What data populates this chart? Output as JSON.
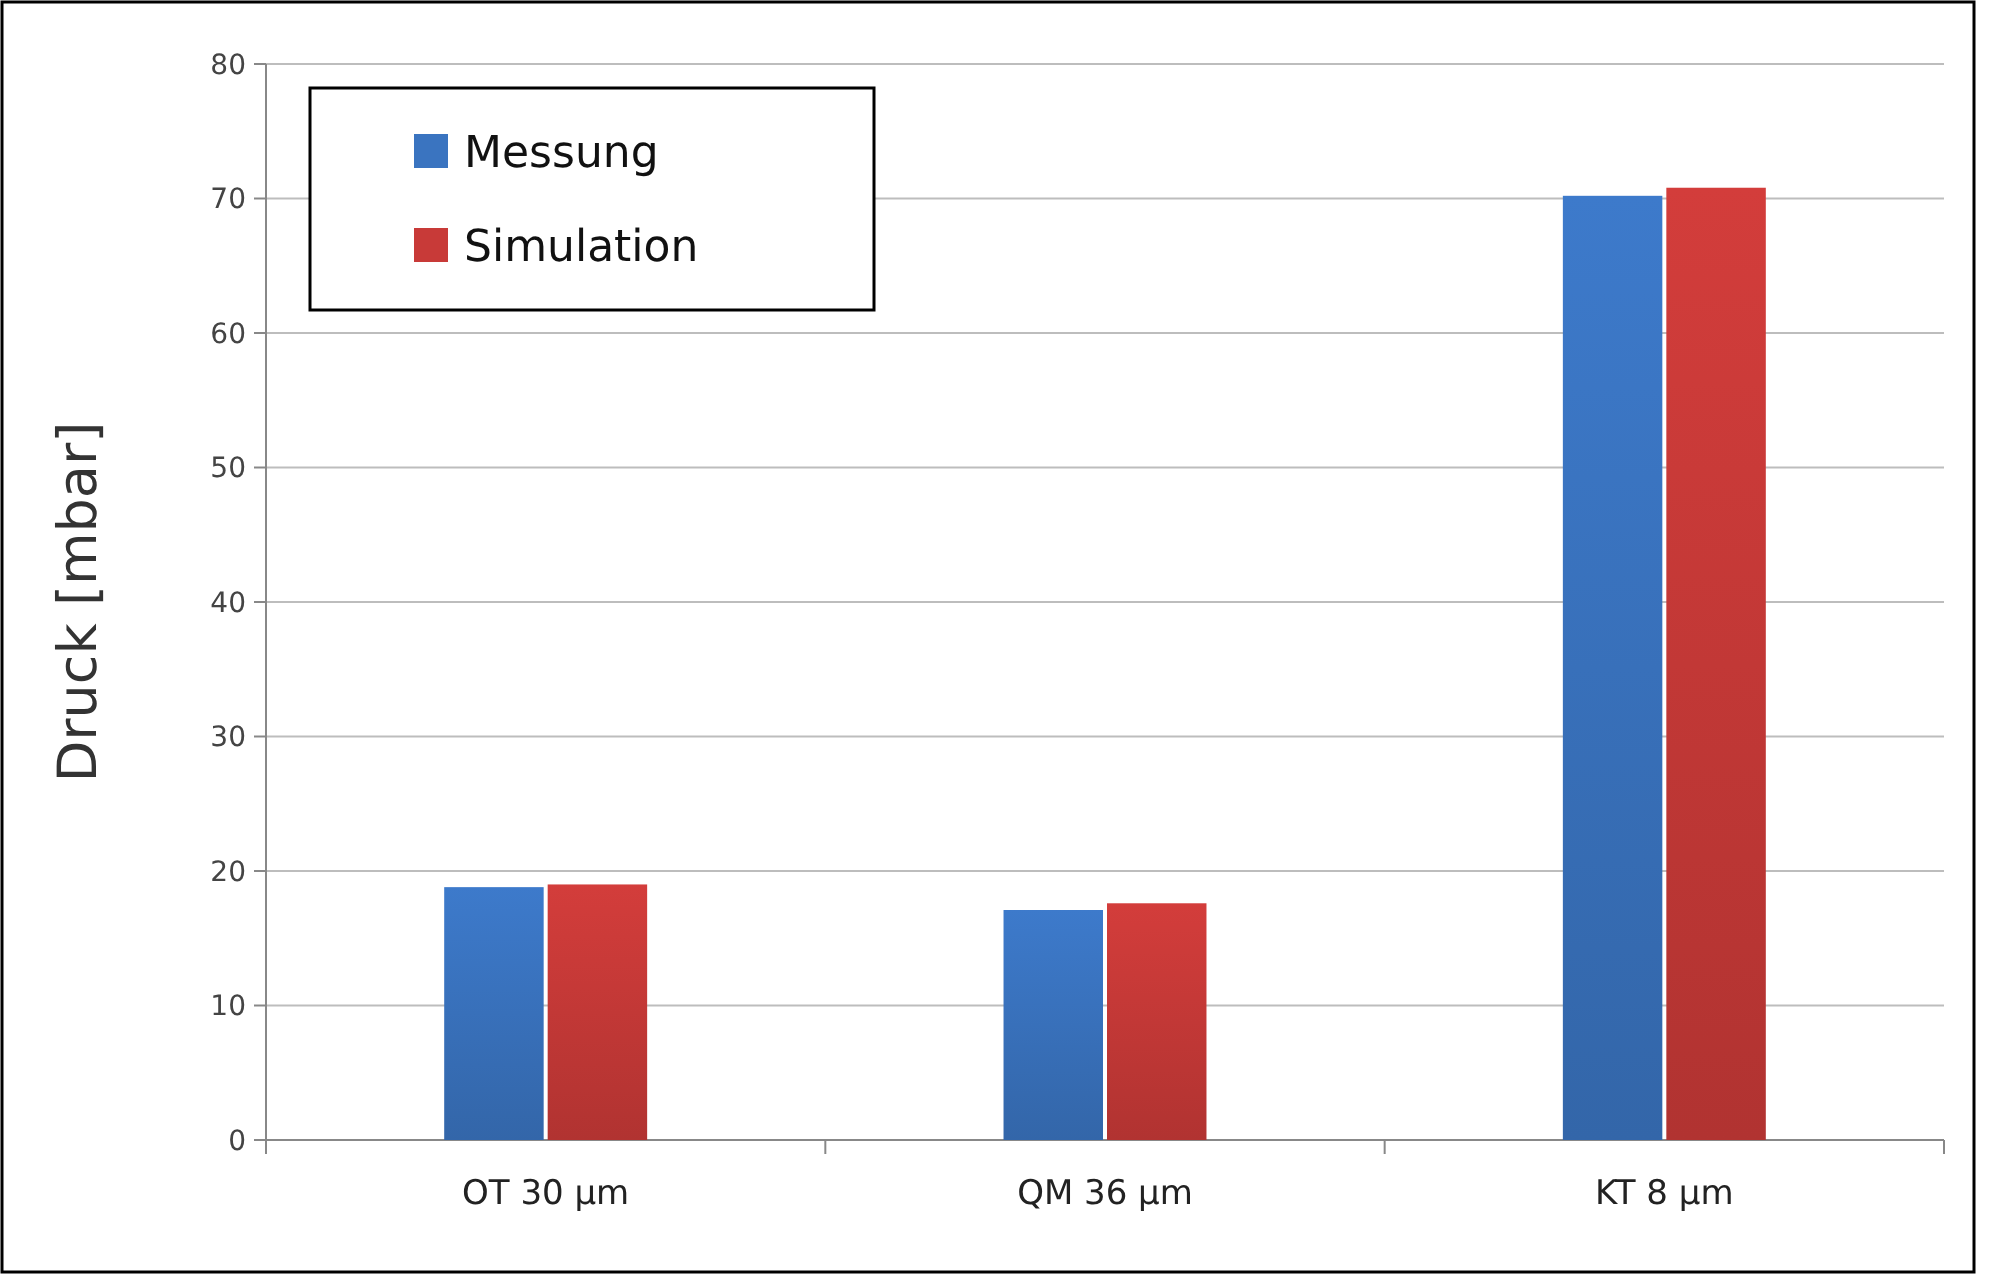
{
  "chart_data": {
    "type": "bar",
    "ylabel": "Druck [mbar]",
    "categories": [
      "OT 30 µm",
      "QM 36 µm",
      "KT 8 µm"
    ],
    "series": [
      {
        "name": "Messung",
        "color": "#3a74c0",
        "values": [
          18.8,
          17.1,
          70.2
        ]
      },
      {
        "name": "Simulation",
        "color": "#c83a38",
        "values": [
          19.0,
          17.6,
          70.8
        ]
      }
    ],
    "ylim": [
      0,
      80
    ],
    "yticks": [
      0,
      10,
      20,
      30,
      40,
      50,
      60,
      70,
      80
    ],
    "grid": "y",
    "legend": "top left"
  }
}
